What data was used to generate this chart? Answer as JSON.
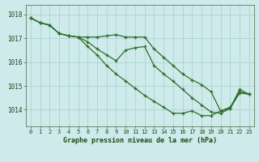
{
  "title": "Graphe pression niveau de la mer (hPa)",
  "background_color": "#ceeaea",
  "grid_color": "#aad4d4",
  "line_color": "#2d6e2d",
  "x_ticks": [
    0,
    1,
    2,
    3,
    4,
    5,
    6,
    7,
    8,
    9,
    10,
    11,
    12,
    13,
    14,
    15,
    16,
    17,
    18,
    19,
    20,
    21,
    22,
    23
  ],
  "y_ticks": [
    1014,
    1015,
    1016,
    1017,
    1018
  ],
  "ylim": [
    1013.3,
    1018.4
  ],
  "xlim": [
    -0.5,
    23.5
  ],
  "series": [
    [
      1017.85,
      1017.65,
      1017.55,
      1017.2,
      1017.1,
      1017.05,
      1017.05,
      1017.05,
      1017.1,
      1017.15,
      1017.05,
      1017.05,
      1017.05,
      1016.55,
      1016.2,
      1015.85,
      1015.5,
      1015.25,
      1015.05,
      1014.75,
      1013.95,
      1014.1,
      1014.75,
      1014.65
    ],
    [
      1017.85,
      1017.65,
      1017.55,
      1017.2,
      1017.1,
      1017.05,
      1016.65,
      1016.3,
      1015.85,
      1015.5,
      1015.2,
      1014.9,
      1014.6,
      1014.35,
      1014.1,
      1013.85,
      1013.85,
      1013.95,
      1013.75,
      1013.75,
      1013.95,
      1014.05,
      1014.7,
      1014.65
    ],
    [
      1017.85,
      1017.65,
      1017.55,
      1017.2,
      1017.1,
      1017.05,
      1016.85,
      1016.55,
      1016.3,
      1016.05,
      1016.5,
      1016.6,
      1016.65,
      1015.85,
      1015.5,
      1015.2,
      1014.85,
      1014.5,
      1014.2,
      1013.9,
      1013.85,
      1014.05,
      1014.85,
      1014.65
    ]
  ]
}
